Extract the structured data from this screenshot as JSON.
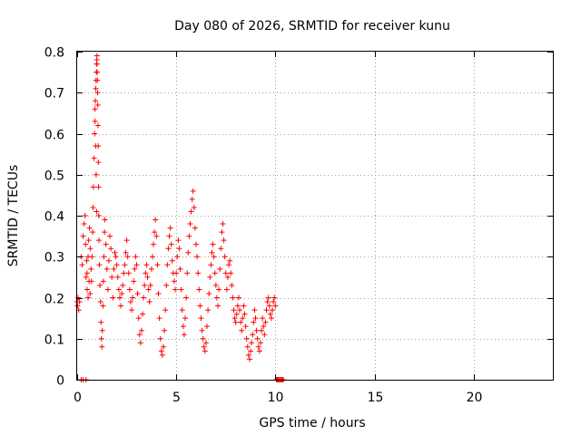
{
  "chart_data": {
    "type": "scatter",
    "title": "Day 080 of 2026, SRMTID for receiver kunu",
    "xlabel": "GPS time / hours",
    "ylabel": "SRMTID / TECUs",
    "xlim": [
      0,
      24
    ],
    "ylim": [
      0,
      0.8
    ],
    "xticks": [
      0,
      5,
      10,
      15,
      20
    ],
    "yticks": [
      0,
      0.1,
      0.2,
      0.3,
      0.4,
      0.5,
      0.6,
      0.7,
      0.8
    ],
    "xtick_labels": [
      "0",
      "5",
      "10",
      "15",
      "20"
    ],
    "ytick_labels": [
      "0",
      "0.1",
      "0.2",
      "0.3",
      "0.4",
      "0.5",
      "0.6",
      "0.7",
      "0.8"
    ],
    "grid": true,
    "marker": "+",
    "color": "#ff0000",
    "series": [
      {
        "x": [
          0.0,
          0.02,
          0.05,
          0.08,
          0.12,
          0.2,
          0.3,
          0.45,
          0.2,
          0.25,
          0.3,
          0.35,
          0.4,
          0.42,
          0.45,
          0.48,
          0.5,
          0.55,
          0.6,
          0.65,
          0.5,
          0.55,
          0.58,
          0.62,
          0.66,
          0.7,
          0.72,
          0.75,
          0.78,
          0.8,
          0.82,
          0.85,
          0.88,
          0.9,
          0.93,
          0.96,
          0.98,
          0.9,
          0.92,
          0.94,
          0.95,
          0.97,
          0.98,
          0.99,
          1.0,
          1.0,
          1.01,
          1.02,
          1.03,
          1.04,
          1.05,
          1.06,
          1.07,
          1.08,
          1.09,
          1.1,
          1.12,
          1.15,
          1.18,
          1.2,
          1.22,
          1.25,
          1.27,
          1.3,
          1.32,
          1.35,
          1.38,
          1.4,
          1.45,
          1.5,
          1.55,
          1.6,
          1.65,
          1.7,
          1.75,
          1.8,
          1.85,
          1.9,
          1.95,
          2.0,
          2.05,
          2.1,
          2.15,
          2.2,
          2.25,
          2.3,
          2.35,
          2.4,
          2.45,
          2.5,
          2.55,
          2.6,
          2.65,
          2.7,
          2.75,
          2.8,
          2.85,
          2.9,
          2.95,
          3.0,
          3.05,
          3.1,
          3.15,
          3.2,
          3.25,
          3.3,
          3.35,
          3.4,
          3.45,
          3.5,
          3.55,
          3.6,
          3.65,
          3.7,
          3.75,
          3.8,
          3.85,
          3.9,
          3.95,
          4.0,
          4.05,
          4.1,
          4.15,
          4.2,
          4.25,
          4.3,
          4.35,
          4.4,
          4.45,
          4.5,
          4.55,
          4.6,
          4.65,
          4.7,
          4.75,
          4.8,
          4.85,
          4.9,
          4.95,
          5.0,
          5.05,
          5.1,
          5.15,
          5.2,
          5.25,
          5.3,
          5.35,
          5.4,
          5.45,
          5.5,
          5.55,
          5.6,
          5.65,
          5.7,
          5.75,
          5.8,
          5.85,
          5.9,
          5.95,
          6.0,
          6.05,
          6.1,
          6.15,
          6.2,
          6.25,
          6.3,
          6.35,
          6.4,
          6.45,
          6.5,
          6.55,
          6.6,
          6.65,
          6.7,
          6.75,
          6.8,
          6.85,
          6.9,
          6.95,
          7.0,
          7.05,
          7.1,
          7.15,
          7.2,
          7.25,
          7.3,
          7.35,
          7.4,
          7.45,
          7.5,
          7.55,
          7.6,
          7.65,
          7.7,
          7.75,
          7.8,
          7.85,
          7.9,
          7.95,
          8.0,
          8.05,
          8.1,
          8.15,
          8.2,
          8.25,
          8.3,
          8.35,
          8.4,
          8.45,
          8.5,
          8.55,
          8.6,
          8.65,
          8.7,
          8.75,
          8.8,
          8.85,
          8.9,
          8.95,
          9.0,
          9.05,
          9.1,
          9.15,
          9.2,
          9.25,
          9.3,
          9.35,
          9.4,
          9.45,
          9.5,
          9.55,
          9.6,
          9.65,
          9.7,
          9.75,
          9.8,
          9.85,
          9.9,
          9.95,
          10.0,
          10.05,
          10.1,
          10.15,
          10.2,
          10.25,
          10.3,
          10.35,
          10.4
        ],
        "y": [
          0.19,
          0.18,
          0.2,
          0.17,
          0.19,
          0.0,
          0.0,
          0.0,
          0.3,
          0.28,
          0.35,
          0.38,
          0.4,
          0.33,
          0.25,
          0.29,
          0.22,
          0.2,
          0.24,
          0.21,
          0.26,
          0.3,
          0.34,
          0.37,
          0.32,
          0.27,
          0.24,
          0.3,
          0.36,
          0.42,
          0.47,
          0.54,
          0.6,
          0.63,
          0.57,
          0.5,
          0.41,
          0.66,
          0.68,
          0.71,
          0.73,
          0.75,
          0.77,
          0.78,
          0.79,
          0.77,
          0.75,
          0.73,
          0.7,
          0.67,
          0.62,
          0.57,
          0.53,
          0.47,
          0.4,
          0.34,
          0.28,
          0.23,
          0.19,
          0.14,
          0.1,
          0.08,
          0.12,
          0.18,
          0.24,
          0.3,
          0.36,
          0.39,
          0.33,
          0.27,
          0.22,
          0.29,
          0.35,
          0.32,
          0.25,
          0.2,
          0.27,
          0.31,
          0.3,
          0.28,
          0.25,
          0.22,
          0.2,
          0.18,
          0.21,
          0.23,
          0.26,
          0.28,
          0.31,
          0.34,
          0.3,
          0.26,
          0.22,
          0.19,
          0.17,
          0.2,
          0.24,
          0.27,
          0.3,
          0.28,
          0.21,
          0.15,
          0.11,
          0.09,
          0.12,
          0.16,
          0.2,
          0.23,
          0.26,
          0.28,
          0.25,
          0.22,
          0.19,
          0.23,
          0.27,
          0.3,
          0.33,
          0.36,
          0.39,
          0.35,
          0.28,
          0.21,
          0.15,
          0.1,
          0.07,
          0.06,
          0.08,
          0.12,
          0.17,
          0.23,
          0.28,
          0.32,
          0.35,
          0.37,
          0.33,
          0.29,
          0.26,
          0.24,
          0.22,
          0.26,
          0.3,
          0.34,
          0.32,
          0.27,
          0.22,
          0.17,
          0.13,
          0.11,
          0.15,
          0.2,
          0.26,
          0.31,
          0.35,
          0.38,
          0.41,
          0.44,
          0.46,
          0.42,
          0.37,
          0.33,
          0.3,
          0.26,
          0.22,
          0.18,
          0.15,
          0.12,
          0.1,
          0.08,
          0.07,
          0.09,
          0.13,
          0.17,
          0.21,
          0.25,
          0.28,
          0.31,
          0.33,
          0.3,
          0.26,
          0.23,
          0.2,
          0.18,
          0.22,
          0.27,
          0.32,
          0.36,
          0.38,
          0.34,
          0.3,
          0.26,
          0.22,
          0.25,
          0.28,
          0.29,
          0.26,
          0.23,
          0.2,
          0.17,
          0.15,
          0.14,
          0.16,
          0.18,
          0.2,
          0.17,
          0.14,
          0.12,
          0.15,
          0.18,
          0.16,
          0.13,
          0.1,
          0.08,
          0.06,
          0.05,
          0.07,
          0.09,
          0.11,
          0.14,
          0.17,
          0.15,
          0.12,
          0.1,
          0.08,
          0.07,
          0.09,
          0.12,
          0.15,
          0.13,
          0.11,
          0.14,
          0.17,
          0.19,
          0.2,
          0.18,
          0.16,
          0.15,
          0.17,
          0.19,
          0.2,
          0.18,
          0.0,
          0.0,
          0.0,
          0.0,
          0.0,
          0.0,
          0.0,
          0.0
        ]
      }
    ]
  }
}
